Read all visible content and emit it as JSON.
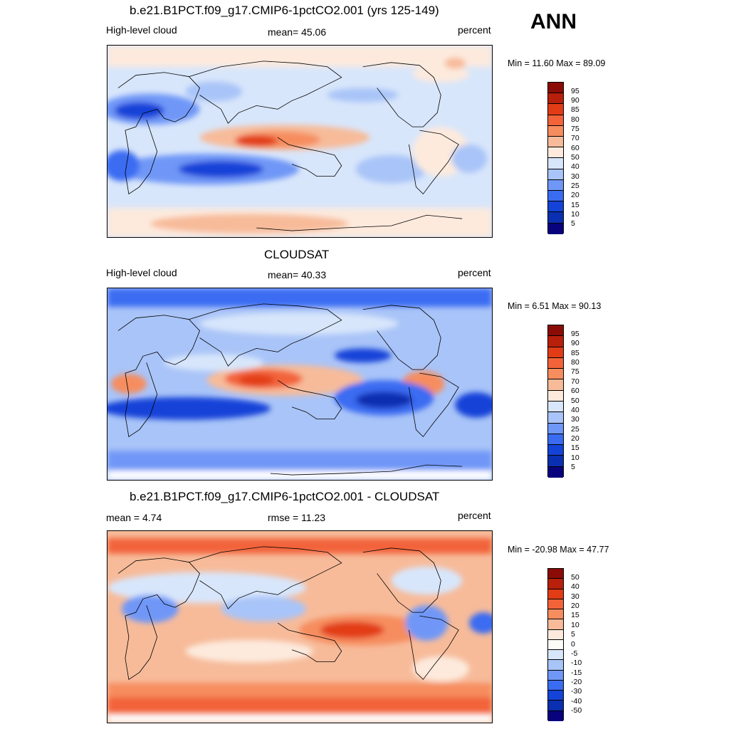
{
  "season": "ANN",
  "units_label": "percent",
  "palette": {
    "c13": [
      "#08037d",
      "#0a2fb0",
      "#1443d8",
      "#3a6cf2",
      "#6f97f7",
      "#a9c4f8",
      "#d8e6fb",
      "#fdeadd",
      "#f7bb9a",
      "#f68d5f",
      "#f2633a",
      "#e23c16",
      "#b8200b",
      "#8b0c06"
    ],
    "diff": [
      "#08037d",
      "#0a2fb0",
      "#1443d8",
      "#3a6cf2",
      "#6f97f7",
      "#a9c4f8",
      "#d8e6fb",
      "#fbfbf8",
      "#fdeadd",
      "#f7bb9a",
      "#f68d5f",
      "#f2633a",
      "#e23c16",
      "#b8200b",
      "#8b0c06"
    ]
  },
  "panels": [
    {
      "title": "b.e21.B1PCT.f09_g17.CMIP6-1pctCO2.001 (yrs 125-149)",
      "left_label": "High-level cloud",
      "center_label": "mean=  45.06",
      "right_label": "percent",
      "minmax": "Min =  11.60 Max =  89.09",
      "colorbar_ticks": [
        "95",
        "90",
        "85",
        "80",
        "75",
        "70",
        "60",
        "50",
        "40",
        "30",
        "25",
        "20",
        "15",
        "10",
        "5"
      ]
    },
    {
      "title": "CLOUDSAT",
      "left_label": "High-level cloud",
      "center_label": "mean=  40.33",
      "right_label": "percent",
      "minmax": "Min =   6.51 Max =  90.13",
      "colorbar_ticks": [
        "95",
        "90",
        "85",
        "80",
        "75",
        "70",
        "60",
        "50",
        "40",
        "30",
        "25",
        "20",
        "15",
        "10",
        "5"
      ]
    },
    {
      "title": "b.e21.B1PCT.f09_g17.CMIP6-1pctCO2.001 - CLOUDSAT",
      "left_label": "mean =   4.74",
      "center_label": "rmse =  11.23",
      "right_label": "percent",
      "minmax": "Min = -20.98 Max =  47.77",
      "colorbar_ticks": [
        "50",
        "40",
        "30",
        "20",
        "15",
        "10",
        "5",
        "0",
        "-5",
        "-10",
        "-15",
        "-20",
        "-30",
        "-40",
        "-50"
      ]
    }
  ]
}
